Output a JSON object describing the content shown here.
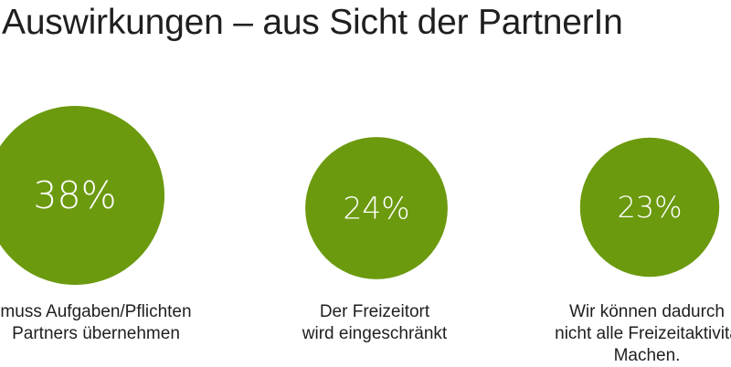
{
  "title": "Auswirkungen – aus Sicht der PartnerIn",
  "colors": {
    "circle": "#6b9a0e",
    "label": "#ffffff",
    "text": "#1f1f1f",
    "background": "#ffffff"
  },
  "chart_data": {
    "type": "bubble",
    "title": "Auswirkungen – aus Sicht der PartnerIn",
    "unit": "%",
    "items": [
      {
        "value": 38,
        "display": "38%",
        "caption_lines": [
          "muss Aufgaben/Pflichten",
          "Partners übernehmen"
        ]
      },
      {
        "value": 24,
        "display": "24%",
        "caption_lines": [
          "Der Freizeitort",
          "wird eingeschränkt"
        ]
      },
      {
        "value": 23,
        "display": "23%",
        "caption_lines": [
          "Wir können dadurch",
          "nicht alle Freizeitaktivitä",
          "Machen."
        ]
      }
    ]
  }
}
